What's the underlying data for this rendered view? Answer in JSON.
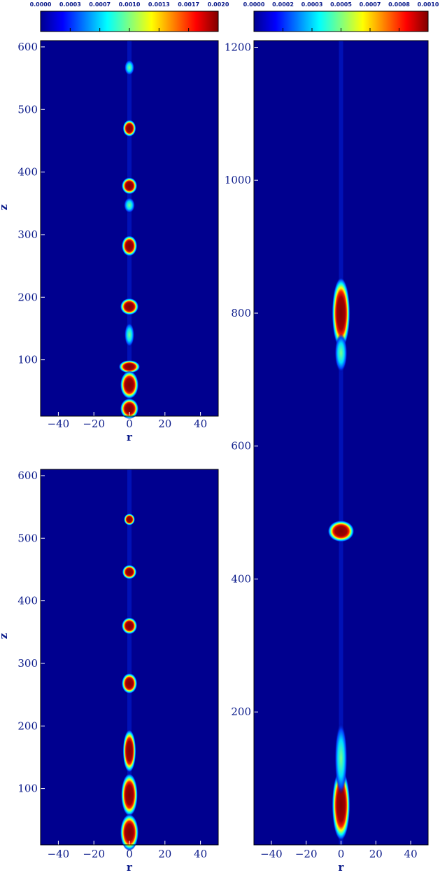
{
  "chart_data": [
    {
      "type": "colorbar",
      "scale_max": 0.002,
      "tick_labels": [
        "0.0000",
        "0.0003",
        "0.0007",
        "0.0010",
        "0.0013",
        "0.0017",
        "0.0020"
      ],
      "colormap": [
        "#00008f",
        "#0000ff",
        "#00ffff",
        "#ffff00",
        "#ff0000",
        "#800000"
      ]
    },
    {
      "type": "colorbar",
      "scale_max": 0.001,
      "tick_labels": [
        "0.0000",
        "0.0002",
        "0.0003",
        "0.0005",
        "0.0007",
        "0.0008",
        "0.0010"
      ],
      "colormap": [
        "#00008f",
        "#0000ff",
        "#00ffff",
        "#ffff00",
        "#ff0000",
        "#800000"
      ]
    },
    {
      "type": "heatmap",
      "xlabel": "r",
      "ylabel": "z",
      "xlim": [
        -50,
        50
      ],
      "ylim": [
        10,
        610
      ],
      "xticks": [
        "-40",
        "-20",
        "0",
        "20",
        "40"
      ],
      "yticks": [
        "100",
        "200",
        "300",
        "400",
        "500",
        "600"
      ],
      "ytick_values": [
        100,
        200,
        300,
        400,
        500,
        600
      ],
      "background_color": "#00008f",
      "blobs": [
        {
          "z": 567,
          "w": 1.0,
          "h": 8,
          "level": 0.45
        },
        {
          "z": 470,
          "w": 1.6,
          "h": 9,
          "level": 1.0
        },
        {
          "z": 378,
          "w": 2.0,
          "h": 9,
          "level": 1.0
        },
        {
          "z": 347,
          "w": 1.2,
          "h": 8,
          "level": 0.35
        },
        {
          "z": 282,
          "w": 2.0,
          "h": 12,
          "level": 1.0
        },
        {
          "z": 185,
          "w": 2.5,
          "h": 9,
          "level": 1.0
        },
        {
          "z": 140,
          "w": 1.0,
          "h": 15,
          "level": 0.5
        },
        {
          "z": 89,
          "w": 3.0,
          "h": 6,
          "level": 1.0
        },
        {
          "z": 60,
          "w": 2.5,
          "h": 18,
          "level": 1.0
        },
        {
          "z": 22,
          "w": 2.5,
          "h": 12,
          "level": 1.0
        }
      ]
    },
    {
      "type": "heatmap",
      "xlabel": "r",
      "ylabel": "z",
      "xlim": [
        -50,
        50
      ],
      "ylim": [
        10,
        610
      ],
      "xticks": [
        "-40",
        "-20",
        "0",
        "20",
        "40"
      ],
      "yticks": [
        "100",
        "200",
        "300",
        "400",
        "500",
        "600"
      ],
      "ytick_values": [
        100,
        200,
        300,
        400,
        500,
        600
      ],
      "background_color": "#00008f",
      "blobs": [
        {
          "z": 530,
          "w": 1.2,
          "h": 5,
          "level": 0.9
        },
        {
          "z": 446,
          "w": 1.8,
          "h": 7,
          "level": 1.0
        },
        {
          "z": 360,
          "w": 2.0,
          "h": 9,
          "level": 1.0
        },
        {
          "z": 268,
          "w": 2.0,
          "h": 12,
          "level": 1.0
        },
        {
          "z": 160,
          "w": 1.6,
          "h": 30,
          "level": 0.9
        },
        {
          "z": 90,
          "w": 2.2,
          "h": 30,
          "level": 1.0
        },
        {
          "z": 30,
          "w": 2.5,
          "h": 25,
          "level": 1.0
        }
      ]
    },
    {
      "type": "heatmap",
      "xlabel": "r",
      "ylabel": "",
      "xlim": [
        -50,
        50
      ],
      "ylim": [
        0,
        1210
      ],
      "xticks": [
        "-40",
        "-20",
        "0",
        "20",
        "40"
      ],
      "yticks": [
        "200",
        "400",
        "600",
        "800",
        "1000",
        "1200"
      ],
      "ytick_values": [
        200,
        400,
        600,
        800,
        1000,
        1200
      ],
      "background_color": "#00008f",
      "blobs": [
        {
          "z": 800,
          "w": 2.5,
          "h": 50,
          "level": 1.0
        },
        {
          "z": 740,
          "w": 1.5,
          "h": 25,
          "level": 0.5
        },
        {
          "z": 472,
          "w": 4.0,
          "h": 12,
          "level": 1.0
        },
        {
          "z": 60,
          "w": 2.5,
          "h": 50,
          "level": 1.0
        },
        {
          "z": 130,
          "w": 1.5,
          "h": 50,
          "level": 0.5
        }
      ]
    }
  ]
}
